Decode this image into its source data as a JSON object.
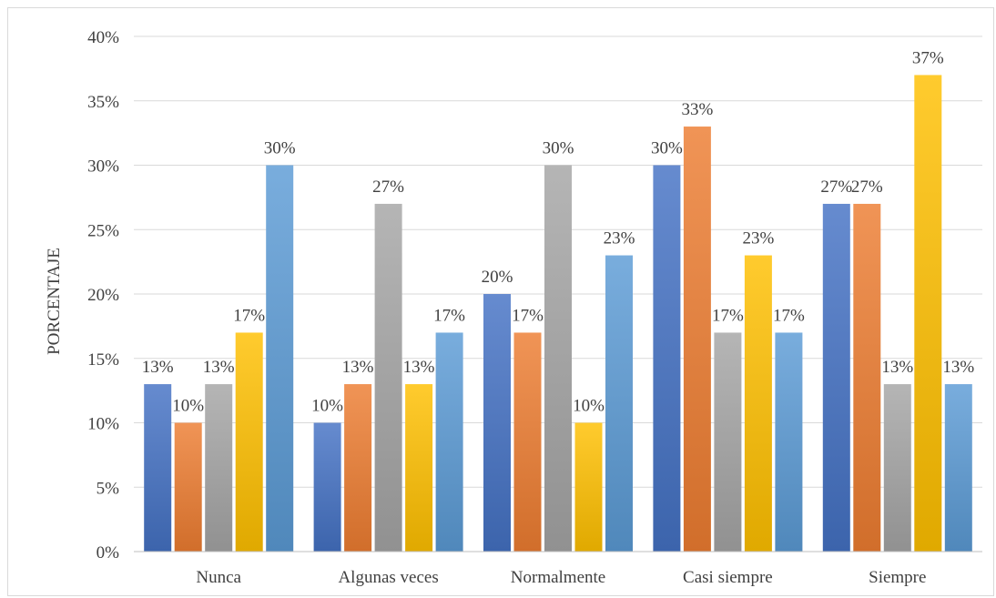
{
  "chart_data": {
    "type": "bar",
    "title": "",
    "xlabel": "",
    "ylabel": "PORCENTAJE",
    "ylim": [
      0,
      0.4
    ],
    "ytick_step": 0.05,
    "ytick_format": "percent",
    "grid": true,
    "legend": "none",
    "categories": [
      "Nunca",
      "Algunas veces",
      "Normalmente",
      "Casi siempre",
      "Siempre"
    ],
    "series": [
      {
        "color": "#4472c4",
        "values": [
          0.13,
          0.1,
          0.2,
          0.3,
          0.27
        ],
        "labels": [
          "13%",
          "10%",
          "20%",
          "30%",
          "27%"
        ]
      },
      {
        "color": "#ed7d31",
        "values": [
          0.1,
          0.13,
          0.17,
          0.33,
          0.27
        ],
        "labels": [
          "10%",
          "13%",
          "17%",
          "33%",
          "27%"
        ]
      },
      {
        "color": "#a5a5a5",
        "values": [
          0.13,
          0.27,
          0.3,
          0.17,
          0.13
        ],
        "labels": [
          "13%",
          "27%",
          "30%",
          "17%",
          "13%"
        ]
      },
      {
        "color": "#ffc000",
        "values": [
          0.17,
          0.13,
          0.1,
          0.23,
          0.37
        ],
        "labels": [
          "17%",
          "13%",
          "10%",
          "23%",
          "37%"
        ]
      },
      {
        "color": "#5b9bd5",
        "values": [
          0.3,
          0.17,
          0.23,
          0.17,
          0.13
        ],
        "labels": [
          "30%",
          "17%",
          "23%",
          "17%",
          "13%"
        ]
      }
    ]
  }
}
